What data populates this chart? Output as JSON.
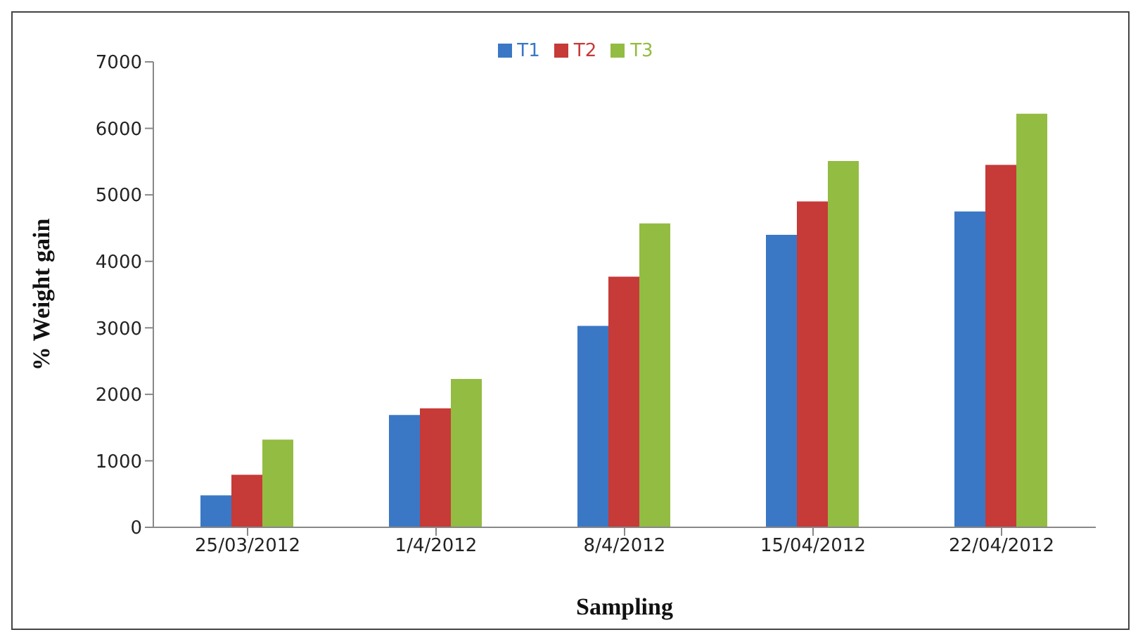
{
  "chart_data": {
    "type": "bar",
    "xlabel": "Sampling",
    "ylabel": "% Weight gain",
    "categories": [
      "25/03/2012",
      "1/4/2012",
      "8/4/2012",
      "15/04/2012",
      "22/04/2012"
    ],
    "series": [
      {
        "name": "T1",
        "color": "#3a78c6",
        "values": [
          480,
          1690,
          3030,
          4400,
          4750
        ]
      },
      {
        "name": "T2",
        "color": "#c63a38",
        "values": [
          790,
          1790,
          3770,
          4900,
          5450
        ]
      },
      {
        "name": "T3",
        "color": "#93bc42",
        "values": [
          1320,
          2230,
          4570,
          5510,
          6220
        ]
      }
    ],
    "ylim": [
      0,
      7000
    ],
    "yticks": [
      0,
      1000,
      2000,
      3000,
      4000,
      5000,
      6000,
      7000
    ],
    "grid": false,
    "legend": "top"
  }
}
